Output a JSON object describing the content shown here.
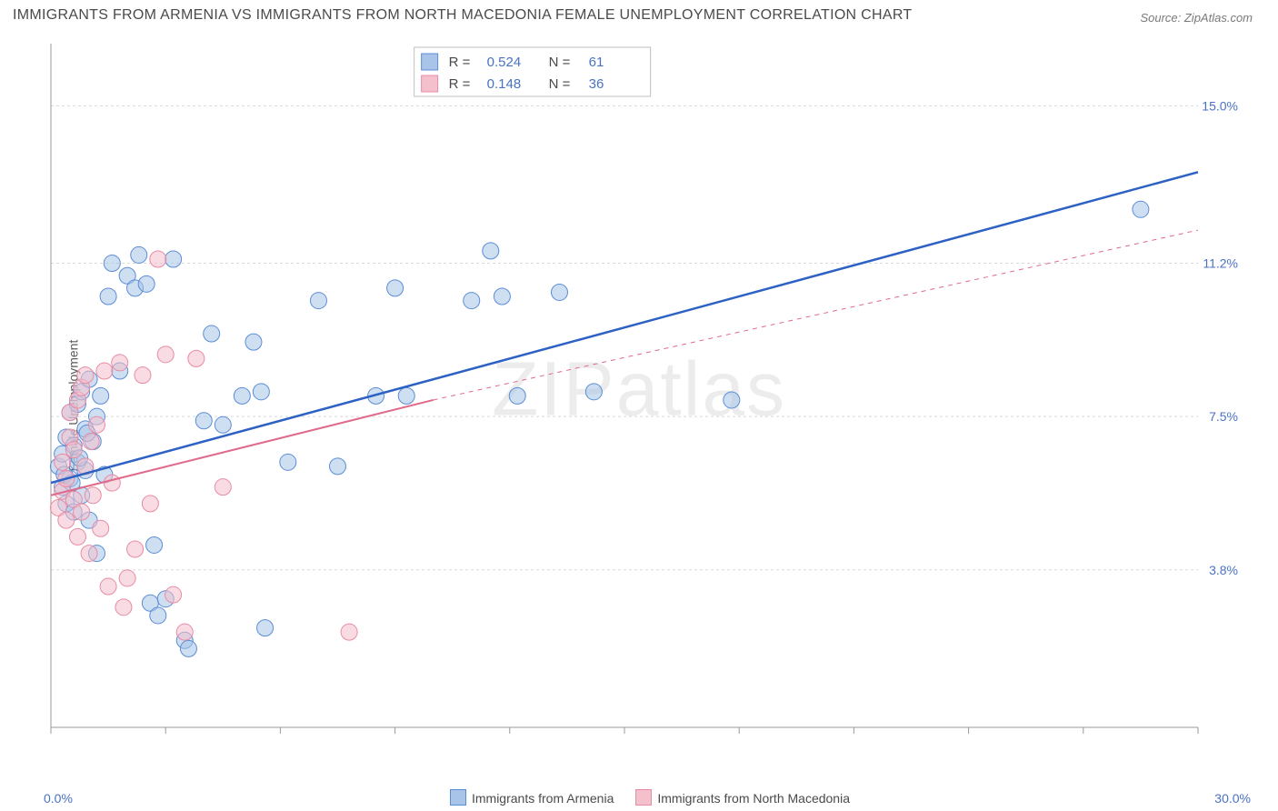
{
  "title": "IMMIGRANTS FROM ARMENIA VS IMMIGRANTS FROM NORTH MACEDONIA FEMALE UNEMPLOYMENT CORRELATION CHART",
  "source": "Source: ZipAtlas.com",
  "watermark": "ZIPatlas",
  "ylabel": "Female Unemployment",
  "chart": {
    "type": "scatter",
    "x_range": [
      0,
      30
    ],
    "y_range": [
      0,
      16.5
    ],
    "x_ticks_minor": [
      0,
      3,
      6,
      9,
      12,
      15,
      18,
      21,
      24,
      27,
      30
    ],
    "y_gridlines": [
      3.8,
      7.5,
      11.2,
      15.0
    ],
    "x_axis_labels": {
      "left": "0.0%",
      "right": "30.0%"
    },
    "y_axis_labels": [
      "3.8%",
      "7.5%",
      "11.2%",
      "15.0%"
    ],
    "grid_color": "#d8d8d8",
    "axis_color": "#9a9a9a",
    "label_color": "#4a72c4",
    "background": "#ffffff",
    "marker_radius": 9,
    "marker_opacity": 0.55,
    "series": [
      {
        "name": "Immigrants from Armenia",
        "color_fill": "#a8c4e8",
        "color_stroke": "#5b8dd6",
        "line_color": "#2d62c4",
        "line_width": 2.5,
        "r_value": "0.524",
        "n_value": "61",
        "regression": {
          "x1": 0,
          "y1": 5.9,
          "x2": 30,
          "y2": 13.4
        },
        "points": [
          [
            0.2,
            6.3
          ],
          [
            0.3,
            5.8
          ],
          [
            0.3,
            6.6
          ],
          [
            0.4,
            5.4
          ],
          [
            0.4,
            7.0
          ],
          [
            0.5,
            6.0
          ],
          [
            0.5,
            7.6
          ],
          [
            0.6,
            5.2
          ],
          [
            0.6,
            6.8
          ],
          [
            0.7,
            6.4
          ],
          [
            0.7,
            7.8
          ],
          [
            0.8,
            5.6
          ],
          [
            0.8,
            8.1
          ],
          [
            0.9,
            6.2
          ],
          [
            0.9,
            7.2
          ],
          [
            1.0,
            8.4
          ],
          [
            1.1,
            6.9
          ],
          [
            1.2,
            7.5
          ],
          [
            1.3,
            8.0
          ],
          [
            1.4,
            6.1
          ],
          [
            1.5,
            10.4
          ],
          [
            1.6,
            11.2
          ],
          [
            1.8,
            8.6
          ],
          [
            2.0,
            10.9
          ],
          [
            2.2,
            10.6
          ],
          [
            2.3,
            11.4
          ],
          [
            2.5,
            10.7
          ],
          [
            2.6,
            3.0
          ],
          [
            2.7,
            4.4
          ],
          [
            2.8,
            2.7
          ],
          [
            3.0,
            3.1
          ],
          [
            3.2,
            11.3
          ],
          [
            3.5,
            2.1
          ],
          [
            3.6,
            1.9
          ],
          [
            4.0,
            7.4
          ],
          [
            4.2,
            9.5
          ],
          [
            4.5,
            7.3
          ],
          [
            5.0,
            8.0
          ],
          [
            5.3,
            9.3
          ],
          [
            5.5,
            8.1
          ],
          [
            5.6,
            2.4
          ],
          [
            6.2,
            6.4
          ],
          [
            7.0,
            10.3
          ],
          [
            7.5,
            6.3
          ],
          [
            8.5,
            8.0
          ],
          [
            9.0,
            10.6
          ],
          [
            9.3,
            8.0
          ],
          [
            11.0,
            10.3
          ],
          [
            11.5,
            11.5
          ],
          [
            11.8,
            10.4
          ],
          [
            12.2,
            8.0
          ],
          [
            13.3,
            10.5
          ],
          [
            14.2,
            8.1
          ],
          [
            17.8,
            7.9
          ],
          [
            28.5,
            12.5
          ],
          [
            1.0,
            5.0
          ],
          [
            1.2,
            4.2
          ],
          [
            0.35,
            6.1
          ],
          [
            0.55,
            5.9
          ],
          [
            0.75,
            6.5
          ],
          [
            0.95,
            7.1
          ]
        ]
      },
      {
        "name": "Immigrants from North Macedonia",
        "color_fill": "#f4c0cc",
        "color_stroke": "#e88ba4",
        "line_color": "#e06a8a",
        "line_width": 2,
        "r_value": "0.148",
        "n_value": "36",
        "regression_solid": {
          "x1": 0,
          "y1": 5.6,
          "x2": 10,
          "y2": 7.9
        },
        "regression_dash": {
          "x1": 10,
          "y1": 7.9,
          "x2": 30,
          "y2": 12.0
        },
        "points": [
          [
            0.2,
            5.3
          ],
          [
            0.3,
            5.7
          ],
          [
            0.3,
            6.4
          ],
          [
            0.4,
            5.0
          ],
          [
            0.4,
            6.0
          ],
          [
            0.5,
            7.0
          ],
          [
            0.5,
            7.6
          ],
          [
            0.6,
            5.5
          ],
          [
            0.6,
            6.7
          ],
          [
            0.7,
            4.6
          ],
          [
            0.7,
            7.9
          ],
          [
            0.8,
            5.2
          ],
          [
            0.8,
            8.2
          ],
          [
            0.9,
            6.3
          ],
          [
            0.9,
            8.5
          ],
          [
            1.0,
            4.2
          ],
          [
            1.1,
            5.6
          ],
          [
            1.2,
            7.3
          ],
          [
            1.3,
            4.8
          ],
          [
            1.4,
            8.6
          ],
          [
            1.5,
            3.4
          ],
          [
            1.6,
            5.9
          ],
          [
            1.8,
            8.8
          ],
          [
            1.9,
            2.9
          ],
          [
            2.0,
            3.6
          ],
          [
            2.2,
            4.3
          ],
          [
            2.4,
            8.5
          ],
          [
            2.6,
            5.4
          ],
          [
            2.8,
            11.3
          ],
          [
            3.0,
            9.0
          ],
          [
            3.2,
            3.2
          ],
          [
            3.5,
            2.3
          ],
          [
            3.8,
            8.9
          ],
          [
            4.5,
            5.8
          ],
          [
            7.8,
            2.3
          ],
          [
            1.05,
            6.9
          ]
        ]
      }
    ]
  },
  "rn_legend": {
    "r_label": "R  =",
    "n_label": "N  =",
    "text_color": "#4a4a4a",
    "value_color": "#4a72c4",
    "border_color": "#bfbfbf"
  },
  "bottom_legend": {
    "items": [
      {
        "label": "Immigrants from Armenia",
        "fill": "#a8c4e8",
        "stroke": "#5b8dd6"
      },
      {
        "label": "Immigrants from North Macedonia",
        "fill": "#f4c0cc",
        "stroke": "#e88ba4"
      }
    ]
  }
}
